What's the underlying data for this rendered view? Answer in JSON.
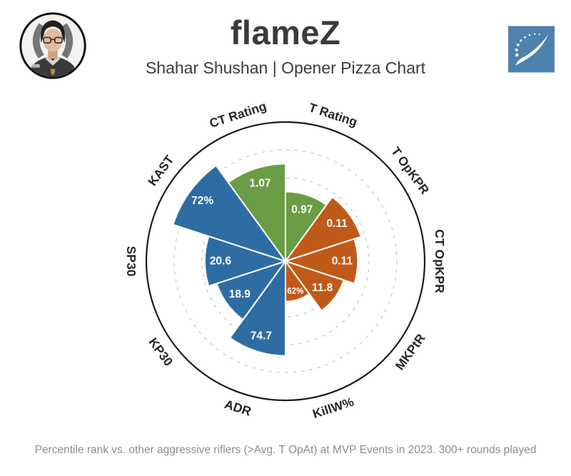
{
  "header": {
    "title": "flameZ",
    "subtitle": "Shahar Shushan | Opener Pizza Chart"
  },
  "footer": {
    "note": "Percentile rank vs. other aggressive riflers (>Avg. T OpAt) at MVP Events in 2023. 300+ rounds played"
  },
  "colors": {
    "green": "#6a9c45",
    "orange": "#c05a18",
    "blue": "#2e6da4",
    "logo_blue": "#4d81ae",
    "title_text": "#3b3b3b",
    "footer_text": "#8d8d8d",
    "grid": "#c7c7c7",
    "ring": "#1c1c1c"
  },
  "chart_data": {
    "type": "pizza",
    "title": "Opener Pizza Chart",
    "max_percentile": 100,
    "start_angle_deg": 0,
    "slice_angle_deg": 36,
    "grid_rings": [
      0.2,
      0.4,
      0.6,
      0.8
    ],
    "legend_position": "none",
    "group_colors": {
      "green": "#6a9c45",
      "orange": "#c05a18",
      "blue": "#2e6da4"
    },
    "slices": [
      {
        "label": "T Rating",
        "value": "0.97",
        "percentile": 50,
        "group": "green"
      },
      {
        "label": "T OpKPR",
        "value": "0.11",
        "percentile": 57,
        "group": "orange"
      },
      {
        "label": "CT OpKPR",
        "value": "0.11",
        "percentile": 52,
        "group": "orange"
      },
      {
        "label": "MKPtR",
        "value": "11.8",
        "percentile": 44,
        "group": "orange"
      },
      {
        "label": "KillW%",
        "value": "62%",
        "percentile": 29,
        "group": "orange",
        "small_label": true
      },
      {
        "label": "ADR",
        "value": "74.7",
        "percentile": 68,
        "group": "blue"
      },
      {
        "label": "KP30",
        "value": "18.9",
        "percentile": 52,
        "group": "blue"
      },
      {
        "label": "SP30",
        "value": "20.6",
        "percentile": 58,
        "group": "blue"
      },
      {
        "label": "KAST",
        "value": "72%",
        "percentile": 85,
        "group": "blue"
      },
      {
        "label": "CT Rating",
        "value": "1.07",
        "percentile": 70,
        "group": "green"
      }
    ]
  }
}
